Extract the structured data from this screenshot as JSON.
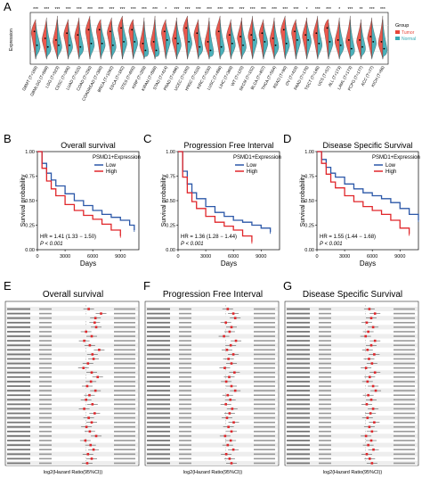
{
  "panel_labels": [
    "A",
    "B",
    "C",
    "D",
    "E",
    "F",
    "G"
  ],
  "colors": {
    "tumor": "#e8463a",
    "normal": "#37a9b4",
    "low": "#2b57a8",
    "high": "#e0262a"
  },
  "chart_data": [
    {
      "panel": "A",
      "type": "violin",
      "ylabel": "Expression",
      "legend": {
        "title": "Group",
        "items": [
          "Tumor",
          "Normal"
        ],
        "placement": "right"
      },
      "significance": [
        "***",
        "***",
        "***",
        "***",
        "***",
        "***",
        "***",
        "***",
        "***",
        "***",
        "***",
        "***",
        "*",
        "***",
        "***",
        "***",
        "***",
        "***",
        "***",
        "***",
        "***",
        "***",
        "***",
        "***",
        "***",
        "*",
        "***",
        "***",
        "*",
        "***",
        "**",
        "***",
        "***"
      ],
      "categories": [
        "GBMT (T=169)",
        "GBMLGG (T=689)",
        "LGG (T=523)",
        "CESC (T=306)",
        "LUAD (T=515)",
        "COAD (T=290)",
        "COADREAD (T=380)",
        "BRCA (T=1092)",
        "ESCA (T=182)",
        "STES (T=600)",
        "KIRP (T=289)",
        "KIPAN (T=889)",
        "STAD (T=414)",
        "PRAD (T=496)",
        "UCEC (T=180)",
        "HNSC (T=518)",
        "KIRC (T=530)",
        "LUSC (T=498)",
        "LIHC (T=369)",
        "WT (T=120)",
        "SKCM (T=102)",
        "BLCA (T=407)",
        "THCA (T=504)",
        "READ (T=90)",
        "OV (T=419)",
        "PAAD (T=178)",
        "TGCT (T=148)",
        "UCS (T=57)",
        "ALL (T=173)",
        "LAML (T=173)",
        "PCPG (T=177)",
        "ACC (T=77)",
        "KICH (T=66)"
      ],
      "tumor_median": [
        7.4,
        7.0,
        6.9,
        7.3,
        7.2,
        7.5,
        7.5,
        7.4,
        7.6,
        7.5,
        6.7,
        6.8,
        7.4,
        7.0,
        7.6,
        7.3,
        6.8,
        7.4,
        7.2,
        7.1,
        7.2,
        7.3,
        7.0,
        7.5,
        7.4,
        7.2,
        7.3,
        7.6,
        6.9,
        6.9,
        6.9,
        7.1,
        6.8
      ],
      "normal_median": [
        6.6,
        6.5,
        6.6,
        6.6,
        6.5,
        6.7,
        6.7,
        6.6,
        6.8,
        6.8,
        6.3,
        6.3,
        6.9,
        6.7,
        6.8,
        6.5,
        6.3,
        6.5,
        6.7,
        6.6,
        6.9,
        6.8,
        6.6,
        6.7,
        6.9,
        6.9,
        6.7,
        6.8,
        6.6,
        6.4,
        6.5,
        6.8,
        6.4
      ]
    },
    {
      "panel": "B",
      "type": "line",
      "title": "Overall survival",
      "xlabel": "Days",
      "ylabel": "Survival probability",
      "xlim": [
        0,
        11000
      ],
      "ylim": [
        0,
        1
      ],
      "xticks": [
        0,
        3000,
        6000,
        9000
      ],
      "yticks": [
        0.0,
        0.25,
        0.5,
        0.75,
        1.0
      ],
      "legend_title": "PSMD1+Expression",
      "hr_text": "HR = 1.41 (1.33 − 1.50)",
      "p_text": "P < 0.001",
      "series": [
        {
          "name": "Low",
          "x": [
            0,
            500,
            1000,
            1500,
            2000,
            3000,
            4000,
            5000,
            6000,
            7000,
            8000,
            9000,
            10000,
            10500
          ],
          "y": [
            1,
            0.88,
            0.78,
            0.71,
            0.65,
            0.57,
            0.5,
            0.45,
            0.4,
            0.36,
            0.33,
            0.3,
            0.25,
            0.2
          ]
        },
        {
          "name": "High",
          "x": [
            0,
            500,
            1000,
            1500,
            2000,
            3000,
            4000,
            5000,
            6000,
            7000,
            8000,
            9000
          ],
          "y": [
            1,
            0.83,
            0.7,
            0.62,
            0.55,
            0.46,
            0.4,
            0.35,
            0.31,
            0.26,
            0.2,
            0.14
          ]
        }
      ]
    },
    {
      "panel": "C",
      "type": "line",
      "title": "Progression Free Interval",
      "xlabel": "Days",
      "ylabel": "Survival probability",
      "xlim": [
        0,
        11000
      ],
      "ylim": [
        0,
        1
      ],
      "xticks": [
        0,
        3000,
        6000,
        9000
      ],
      "yticks": [
        0.0,
        0.25,
        0.5,
        0.75,
        1.0
      ],
      "legend_title": "PSMD1+Expression",
      "hr_text": "HR = 1.36 (1.28 − 1.44)",
      "p_text": "P < 0.001",
      "series": [
        {
          "name": "Low",
          "x": [
            0,
            500,
            1000,
            1500,
            2000,
            3000,
            4000,
            5000,
            6000,
            7000,
            8000,
            9000,
            10000
          ],
          "y": [
            1,
            0.8,
            0.67,
            0.58,
            0.52,
            0.44,
            0.38,
            0.34,
            0.3,
            0.28,
            0.25,
            0.22,
            0.18
          ]
        },
        {
          "name": "High",
          "x": [
            0,
            500,
            1000,
            1500,
            2000,
            3000,
            4000,
            5000,
            6000,
            7000,
            8000
          ],
          "y": [
            1,
            0.74,
            0.58,
            0.49,
            0.42,
            0.34,
            0.28,
            0.24,
            0.2,
            0.14,
            0.08
          ]
        }
      ]
    },
    {
      "panel": "D",
      "type": "line",
      "title": "Disease Specific Survival",
      "xlabel": "Days",
      "ylabel": "Survival probability",
      "xlim": [
        0,
        11000
      ],
      "ylim": [
        0,
        1
      ],
      "xticks": [
        0,
        3000,
        6000,
        9000
      ],
      "yticks": [
        0.0,
        0.25,
        0.5,
        0.75,
        1.0
      ],
      "legend_title": "PSMD1+Expression",
      "hr_text": "HR = 1.55 (1.44 − 1.68)",
      "p_text": "P < 0.001",
      "series": [
        {
          "name": "Low",
          "x": [
            0,
            500,
            1000,
            1500,
            2000,
            3000,
            4000,
            5000,
            6000,
            7000,
            8000,
            9000,
            10000,
            11000
          ],
          "y": [
            1,
            0.92,
            0.84,
            0.78,
            0.74,
            0.67,
            0.62,
            0.58,
            0.55,
            0.52,
            0.48,
            0.42,
            0.36,
            0.3
          ]
        },
        {
          "name": "High",
          "x": [
            0,
            500,
            1000,
            1500,
            2000,
            3000,
            4000,
            5000,
            6000,
            7000,
            8000,
            9000,
            10000
          ],
          "y": [
            1,
            0.88,
            0.77,
            0.69,
            0.63,
            0.55,
            0.49,
            0.44,
            0.4,
            0.36,
            0.3,
            0.22,
            0.16
          ]
        }
      ]
    },
    {
      "panel": "E",
      "type": "forest",
      "title": "Overall survival",
      "xlabel": "log2(Hazard Ratio(95%CI))",
      "hr": [
        0.42,
        0.75,
        0.6,
        0.58,
        0.62,
        0.35,
        0.5,
        0.3,
        0.45,
        0.7,
        0.52,
        0.55,
        0.4,
        0.28,
        0.5,
        0.66,
        0.48,
        0.38,
        0.6,
        0.44,
        0.35,
        0.52,
        0.3,
        0.58,
        0.42,
        0.5,
        0.36,
        0.45,
        0.62,
        0.33,
        0.47,
        0.55,
        0.4,
        0.5,
        0.38
      ]
    },
    {
      "panel": "F",
      "type": "forest",
      "title": "Progression Free Interval",
      "xlabel": "log2(Hazard Ratio(95%CI))",
      "hr": [
        0.4,
        0.55,
        0.6,
        0.35,
        0.5,
        0.45,
        0.3,
        0.62,
        0.48,
        0.38,
        0.55,
        0.42,
        0.5,
        0.32,
        0.58,
        0.44,
        0.36,
        0.5,
        0.6,
        0.4,
        0.47,
        0.35,
        0.52,
        0.45,
        0.38,
        0.56,
        0.42,
        0.5,
        0.33,
        0.48,
        0.4,
        0.55,
        0.36,
        0.45,
        0.5
      ]
    },
    {
      "panel": "G",
      "type": "forest",
      "title": "Disease Specific Survival",
      "xlabel": "log2(Hazard Ratio(95%CI))",
      "hr": [
        0.45,
        0.6,
        0.5,
        0.38,
        0.55,
        0.42,
        0.35,
        0.6,
        0.5,
        0.4,
        0.58,
        0.44,
        0.52,
        0.36,
        0.6,
        0.46,
        0.4,
        0.55,
        0.62,
        0.42,
        0.5,
        0.38,
        0.55,
        0.48,
        0.4,
        0.58,
        0.45,
        0.52,
        0.36,
        0.5,
        0.42,
        0.56,
        0.38,
        0.46,
        0.52
      ]
    }
  ]
}
